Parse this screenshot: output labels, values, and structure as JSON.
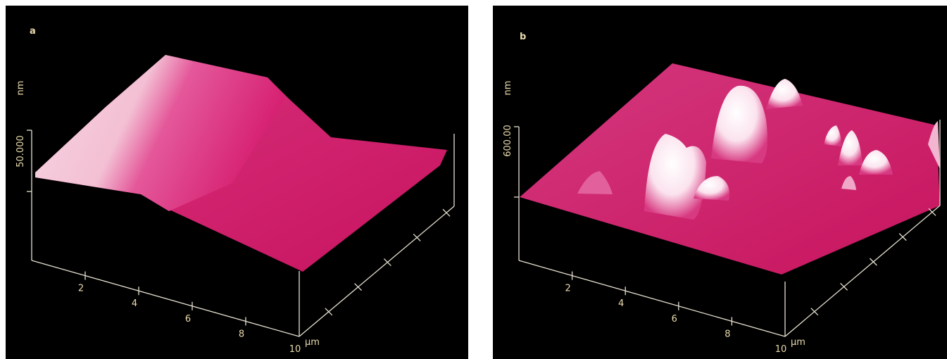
{
  "panels": [
    {
      "label": "a",
      "z_unit": "nm",
      "z_tick": "50.000",
      "x_ticks": [
        "2",
        "4",
        "6",
        "8",
        "10"
      ],
      "x_unit": "μm"
    },
    {
      "label": "b",
      "z_unit": "nm",
      "z_tick": "600.00",
      "x_ticks": [
        "2",
        "4",
        "6",
        "8",
        "10"
      ],
      "x_unit": "μm"
    }
  ]
}
